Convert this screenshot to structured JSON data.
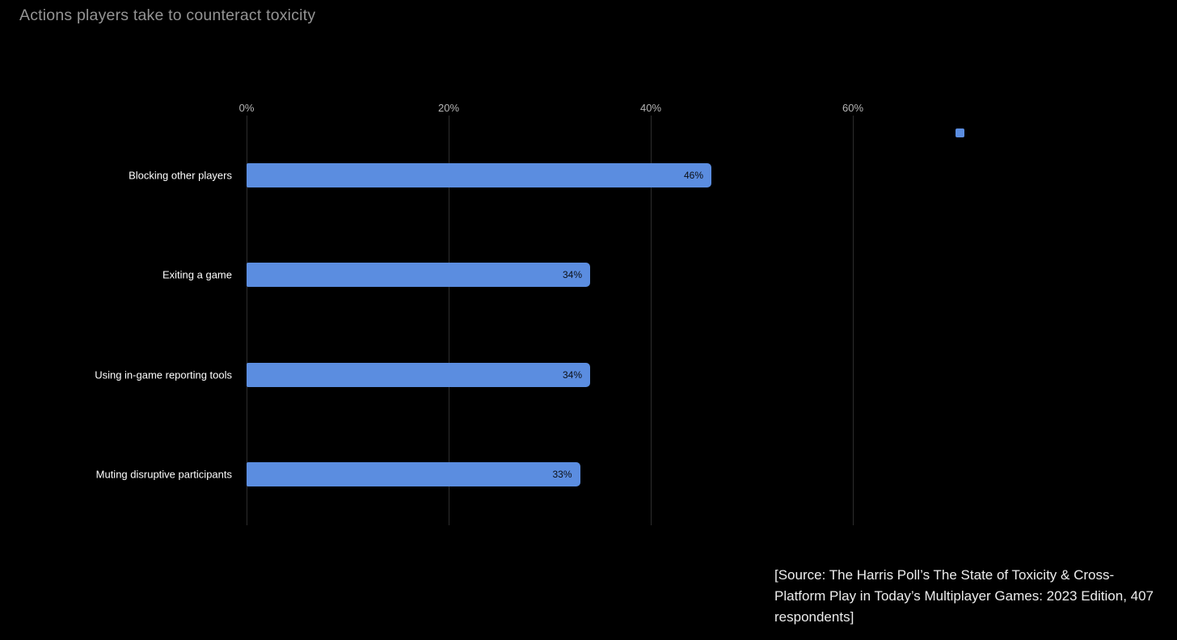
{
  "page": {
    "background_color": "#000000"
  },
  "title": "Actions players take to counteract toxicity",
  "title_color": "#949494",
  "legend": {
    "marker": "square-swatch",
    "marker_color": "#5b8de0",
    "label": ""
  },
  "source_note": "[Source: The Harris Poll’s The State of Toxicity & Cross-Platform Play in Today’s Multiplayer Games: 2023 Edition, 407 respondents]",
  "chart_data": {
    "type": "bar",
    "orientation": "horizontal",
    "title": "Actions players take to counteract toxicity",
    "categories": [
      "Blocking other players",
      "Exiting a game",
      "Using in-game reporting tools",
      "Muting disruptive participants"
    ],
    "values": [
      46,
      34,
      34,
      33
    ],
    "value_labels": [
      "46%",
      "34%",
      "34%",
      "33%"
    ],
    "value_label_position": "inside-end",
    "value_label_color": "#0b0e14",
    "bar_color": "#5b8de0",
    "x_ticks": [
      "0%",
      "20%",
      "40%",
      "60%"
    ],
    "x_tick_values": [
      0,
      20,
      40,
      60
    ],
    "x_axis_position": "top",
    "xlim": [
      0,
      90
    ],
    "xlabel": "",
    "ylabel": "",
    "grid": "vertical-only",
    "grid_color": "#2d2d2d",
    "tick_label_color": "#b6b6b6",
    "category_label_color": "#ffffff",
    "legend_position": "top-right"
  }
}
